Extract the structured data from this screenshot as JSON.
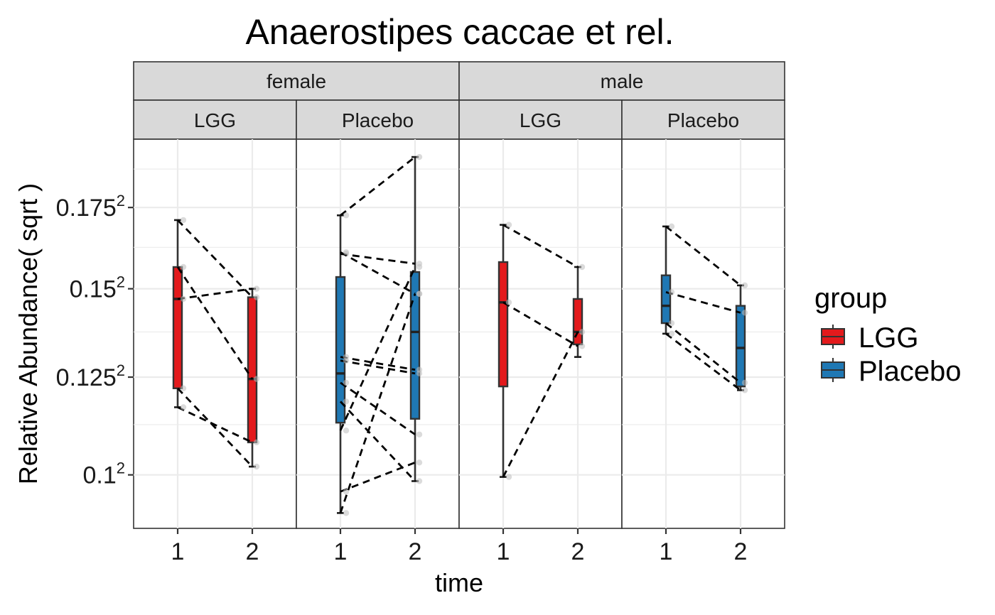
{
  "chart_data": {
    "type": "box",
    "title": "Anaerostipes caccae et rel.",
    "xlabel": "time",
    "ylabel": "Relative Abundance( sqrt )",
    "y_scale": "sqrt",
    "ylim": [
      0.0875,
      0.1975
    ],
    "y_ticks": [
      {
        "value": 0.1,
        "base": "0.1",
        "exp": "2"
      },
      {
        "value": 0.125,
        "base": "0.125",
        "exp": "2"
      },
      {
        "value": 0.15,
        "base": "0.15",
        "exp": "2"
      },
      {
        "value": 0.175,
        "base": "0.175",
        "exp": "2"
      }
    ],
    "x_ticks": [
      "1",
      "2"
    ],
    "facet_rows": [
      "female",
      "male"
    ],
    "legend": {
      "title": "group",
      "position": "right",
      "items": [
        {
          "label": "LGG",
          "color": "#e31a1c"
        },
        {
          "label": "Placebo",
          "color": "#1f78b4"
        }
      ]
    },
    "grid": true,
    "panels": [
      {
        "sex": "female",
        "group": "LGG",
        "color": "#e31a1c",
        "boxes": [
          {
            "time": "1",
            "whisker_low": 0.117,
            "q1": 0.122,
            "median": 0.147,
            "q3": 0.1565,
            "whisker_high": 0.171
          },
          {
            "time": "2",
            "whisker_low": 0.102,
            "q1": 0.108,
            "median": 0.1245,
            "q3": 0.1475,
            "whisker_high": 0.15
          }
        ],
        "pairs": [
          [
            0.171,
            0.1475
          ],
          [
            0.147,
            0.15
          ],
          [
            0.1565,
            0.1245
          ],
          [
            0.122,
            0.102
          ],
          [
            0.117,
            0.108
          ]
        ]
      },
      {
        "sex": "female",
        "group": "Placebo",
        "color": "#1f78b4",
        "boxes": [
          {
            "time": "1",
            "whisker_low": 0.091,
            "q1": 0.113,
            "median": 0.126,
            "q3": 0.1535,
            "whisker_high": 0.1725
          },
          {
            "time": "2",
            "whisker_low": 0.0985,
            "q1": 0.114,
            "median": 0.1375,
            "q3": 0.155,
            "whisker_high": 0.1915
          }
        ],
        "pairs": [
          [
            0.1725,
            0.1915
          ],
          [
            0.1605,
            0.1575
          ],
          [
            0.161,
            0.1485
          ],
          [
            0.1305,
            0.127
          ],
          [
            0.1295,
            0.126
          ],
          [
            0.1235,
            0.11
          ],
          [
            0.1185,
            0.0985
          ],
          [
            0.111,
            0.1565
          ],
          [
            0.096,
            0.103
          ],
          [
            0.091,
            0.1485
          ]
        ]
      },
      {
        "sex": "male",
        "group": "LGG",
        "color": "#e31a1c",
        "boxes": [
          {
            "time": "1",
            "whisker_low": 0.0995,
            "q1": 0.1225,
            "median": 0.146,
            "q3": 0.158,
            "whisker_high": 0.1695
          },
          {
            "time": "2",
            "whisker_low": 0.1305,
            "q1": 0.134,
            "median": 0.1375,
            "q3": 0.147,
            "whisker_high": 0.1565
          }
        ],
        "pairs": [
          [
            0.1695,
            0.1565
          ],
          [
            0.146,
            0.1335
          ],
          [
            0.0995,
            0.1375
          ]
        ]
      },
      {
        "sex": "male",
        "group": "Placebo",
        "color": "#1f78b4",
        "boxes": [
          {
            "time": "1",
            "whisker_low": 0.137,
            "q1": 0.14,
            "median": 0.145,
            "q3": 0.154,
            "whisker_high": 0.169
          },
          {
            "time": "2",
            "whisker_low": 0.1215,
            "q1": 0.1225,
            "median": 0.133,
            "q3": 0.145,
            "whisker_high": 0.151
          }
        ],
        "pairs": [
          [
            0.169,
            0.151
          ],
          [
            0.149,
            0.143
          ],
          [
            0.14,
            0.1235
          ],
          [
            0.137,
            0.1215
          ]
        ]
      }
    ]
  }
}
